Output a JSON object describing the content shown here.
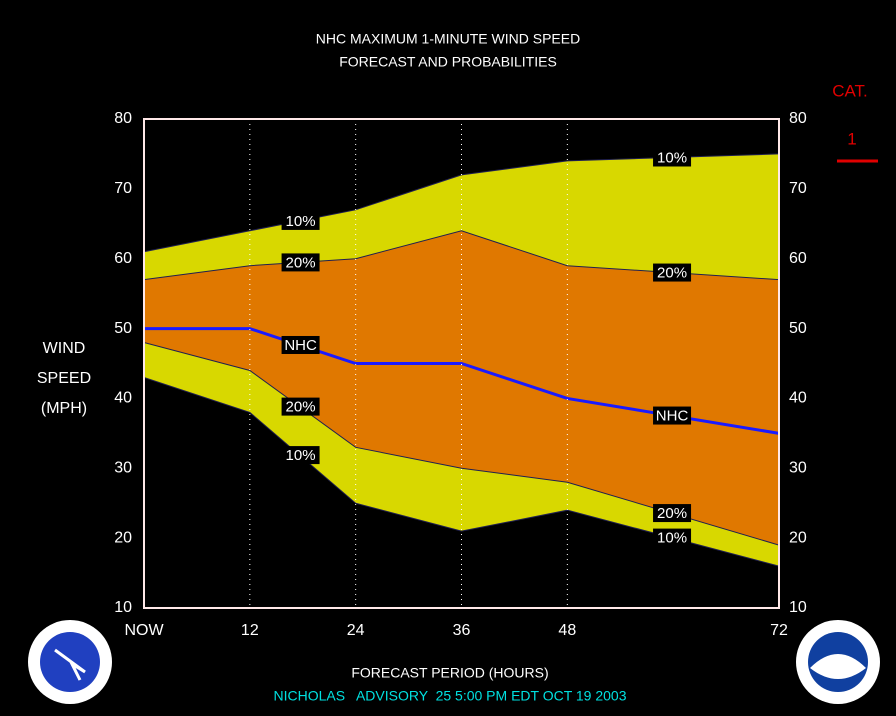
{
  "chart_data": {
    "type": "area",
    "title": [
      "NHC MAXIMUM 1-MINUTE WIND SPEED",
      "FORECAST AND PROBABILITIES"
    ],
    "y_label": [
      "WIND",
      "SPEED",
      "(MPH)"
    ],
    "x_label": "FORECAST PERIOD (HOURS)",
    "footer": "NICHOLAS   ADVISORY  25 5:00 PM EDT OCT 19 2003",
    "category": {
      "label": "CAT.",
      "value": "1",
      "color": "#e00000"
    },
    "x": [
      0,
      12,
      24,
      36,
      48,
      72
    ],
    "xlim": [
      0,
      72
    ],
    "xticks": [
      {
        "value": 0,
        "label": "NOW"
      },
      12,
      24,
      36,
      48,
      72
    ],
    "ylim": [
      10,
      80
    ],
    "yticks": [
      10,
      20,
      30,
      40,
      50,
      60,
      70,
      80
    ],
    "y2lim": [
      10,
      80
    ],
    "y2ticks": [
      10,
      20,
      30,
      40,
      50,
      60,
      70,
      80
    ],
    "grid": true,
    "series": [
      {
        "name": "10%",
        "type": "area",
        "color": "#d8d800",
        "values": [
          61,
          64,
          67,
          72,
          74,
          75
        ]
      },
      {
        "name": "20%",
        "type": "area",
        "color": "#e07800",
        "values": [
          57,
          59,
          60,
          64,
          59,
          57
        ]
      },
      {
        "name": "NHC",
        "type": "line",
        "color": "#1a1aff",
        "values": [
          50,
          50,
          45,
          45,
          40,
          35
        ]
      },
      {
        "name": "20%",
        "type": "area",
        "color": "#d8d800",
        "values": [
          48,
          44,
          33,
          30,
          28,
          19
        ]
      },
      {
        "name": "10%",
        "type": "area",
        "color": "#000000",
        "values": [
          43,
          38,
          25,
          21,
          24,
          16
        ]
      }
    ]
  }
}
